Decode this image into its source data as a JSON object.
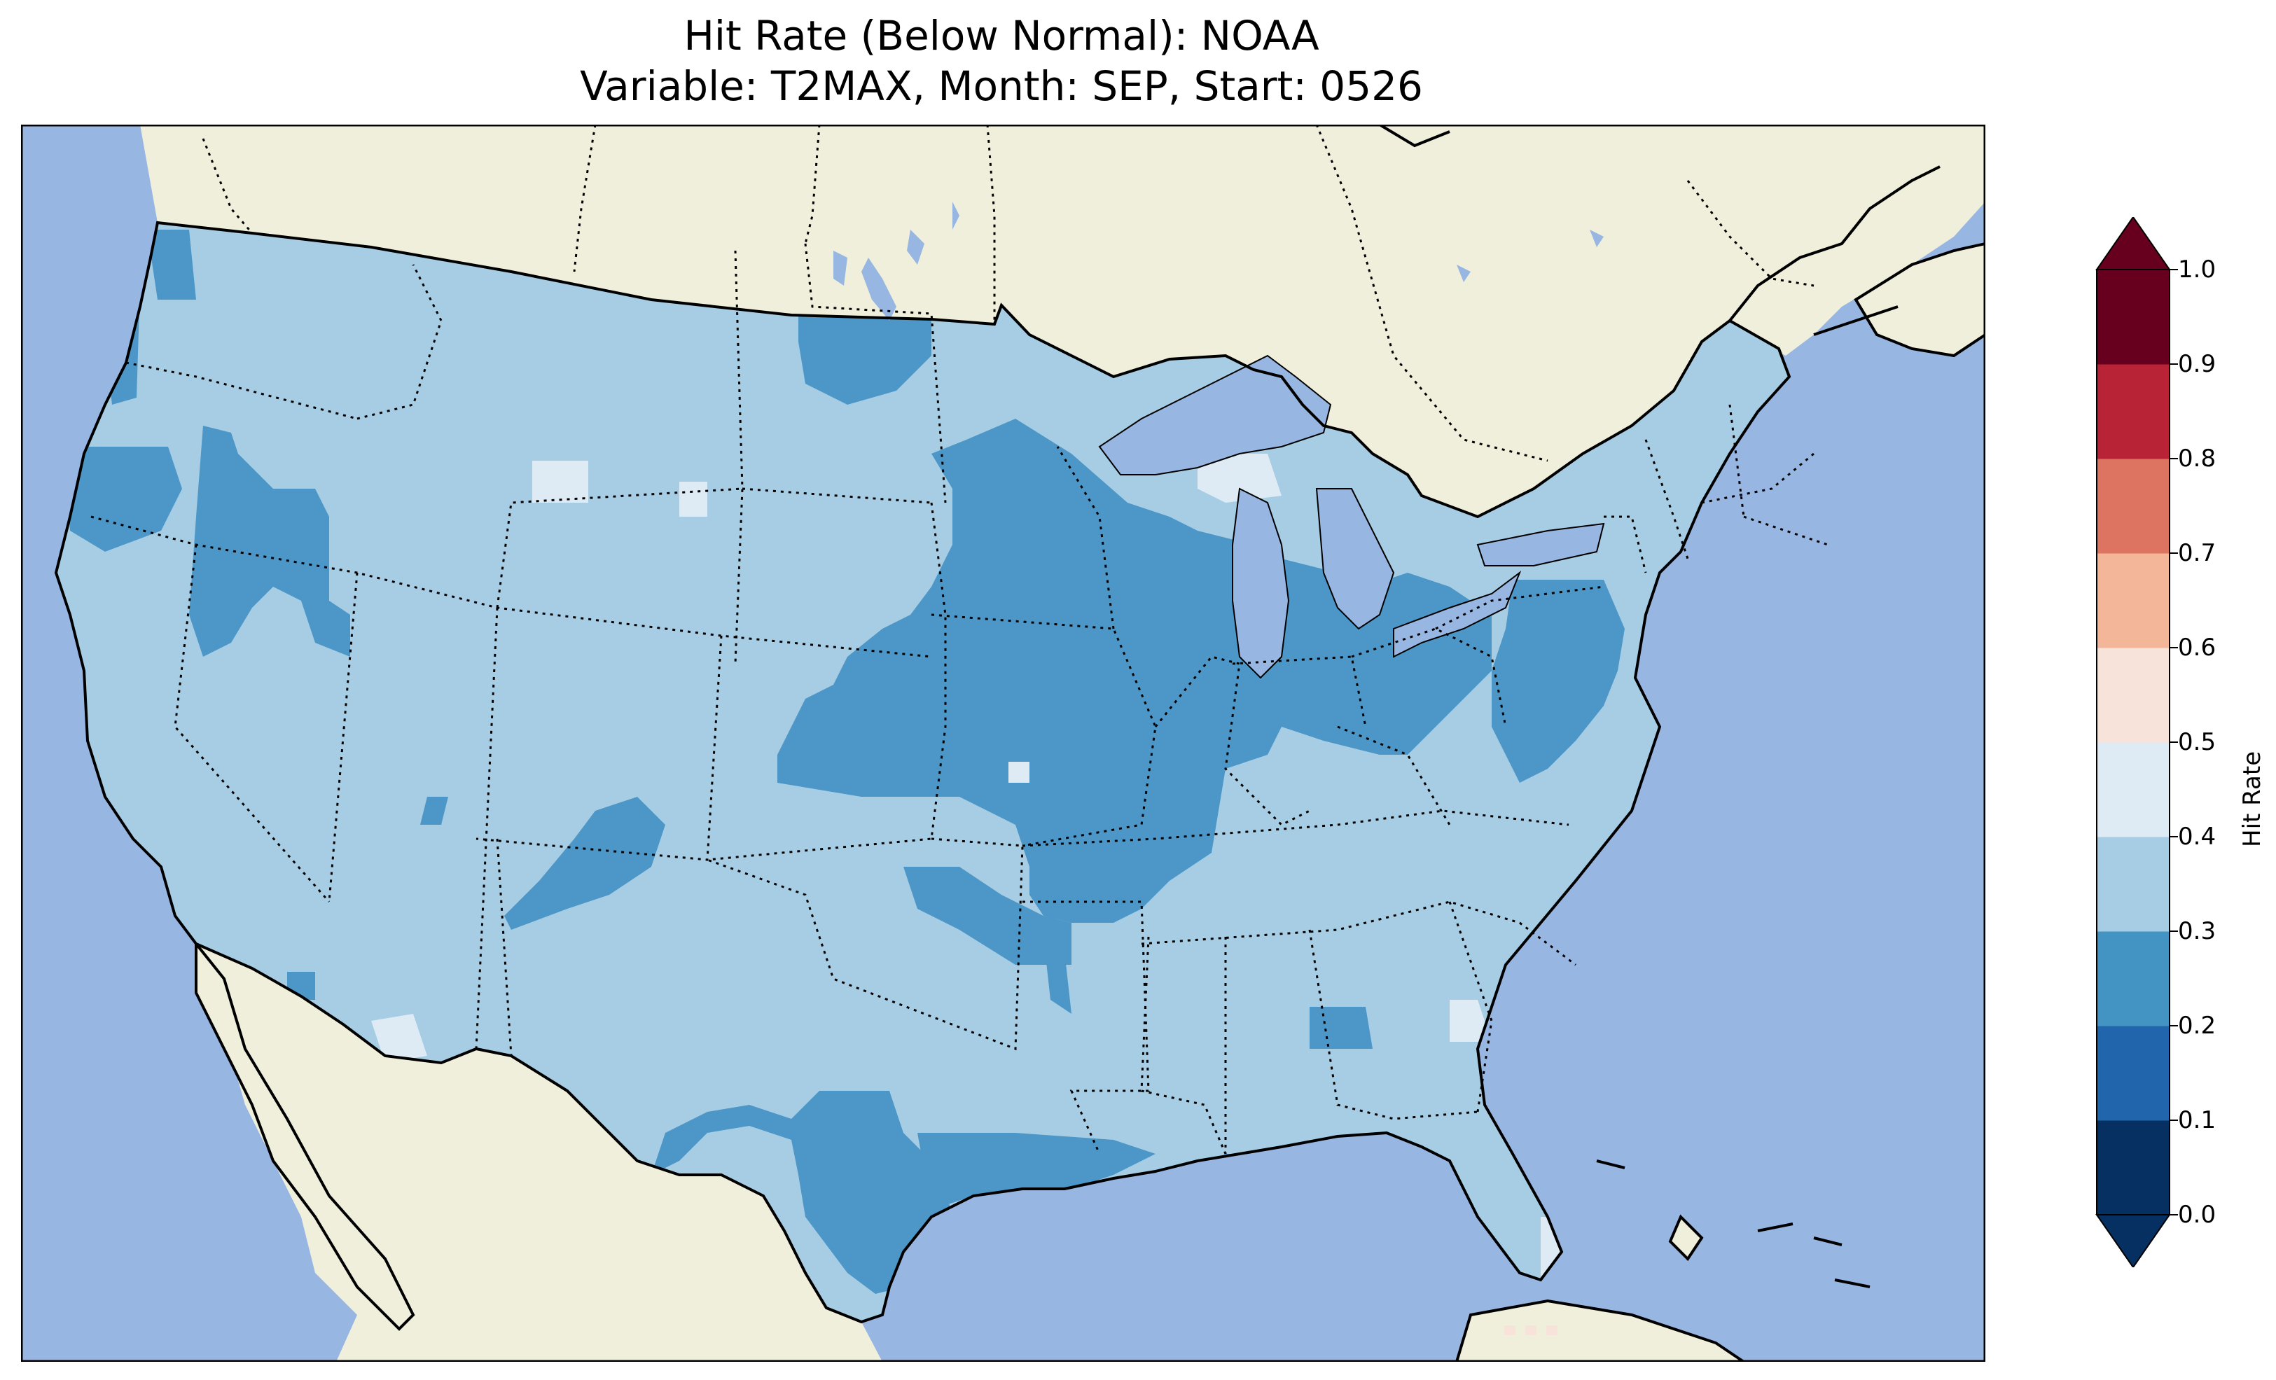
{
  "title_line1": "Hit Rate (Below Normal): NOAA",
  "title_line2": "Variable: T2MAX, Month: SEP, Start: 0526",
  "colors": {
    "ocean": "#97b6e1",
    "land": "#efefdb",
    "lake": "#97b6e1",
    "c00_01": "#053061",
    "c01_02": "#2166ac",
    "c02_03": "#4393c3",
    "c03_04": "#92c5de",
    "c04_05": "#d1e5f0",
    "c05_06": "#fddbc7",
    "c06_07": "#f4a582",
    "c07_08": "#d6604d",
    "c08_09": "#b2182b",
    "c09_10": "#67001f"
  },
  "colorbar": {
    "label": "Hit Rate",
    "ticks": [
      "0.0",
      "0.1",
      "0.2",
      "0.3",
      "0.4",
      "0.5",
      "0.6",
      "0.7",
      "0.8",
      "0.9",
      "1.0"
    ],
    "bins": [
      {
        "min": 0.0,
        "max": 0.1,
        "color": "#053061"
      },
      {
        "min": 0.1,
        "max": 0.2,
        "color": "#2166ac"
      },
      {
        "min": 0.2,
        "max": 0.3,
        "color": "#4393c3"
      },
      {
        "min": 0.3,
        "max": 0.4,
        "color": "#a6cde3"
      },
      {
        "min": 0.4,
        "max": 0.5,
        "color": "#deebf5"
      },
      {
        "min": 0.5,
        "max": 0.6,
        "color": "#f8e3da"
      },
      {
        "min": 0.6,
        "max": 0.7,
        "color": "#f4b698"
      },
      {
        "min": 0.7,
        "max": 0.8,
        "color": "#dd7461"
      },
      {
        "min": 0.8,
        "max": 0.9,
        "color": "#b82436"
      },
      {
        "min": 0.9,
        "max": 1.0,
        "color": "#67001f"
      }
    ],
    "extend": "both"
  },
  "regions_dominant": [
    {
      "name": "US base",
      "value_bin": "0.3-0.4"
    },
    {
      "name": "Central Plains / Midwest",
      "value_bin": "0.2-0.3"
    },
    {
      "name": "Nevada",
      "value_bin": "0.2-0.3"
    },
    {
      "name": "Texas",
      "value_bin": "0.2-0.3"
    },
    {
      "name": "Ohio/Indiana",
      "value_bin": "0.2-0.3"
    },
    {
      "name": "Florida south",
      "value_bin": "0.4-0.5"
    }
  ]
}
